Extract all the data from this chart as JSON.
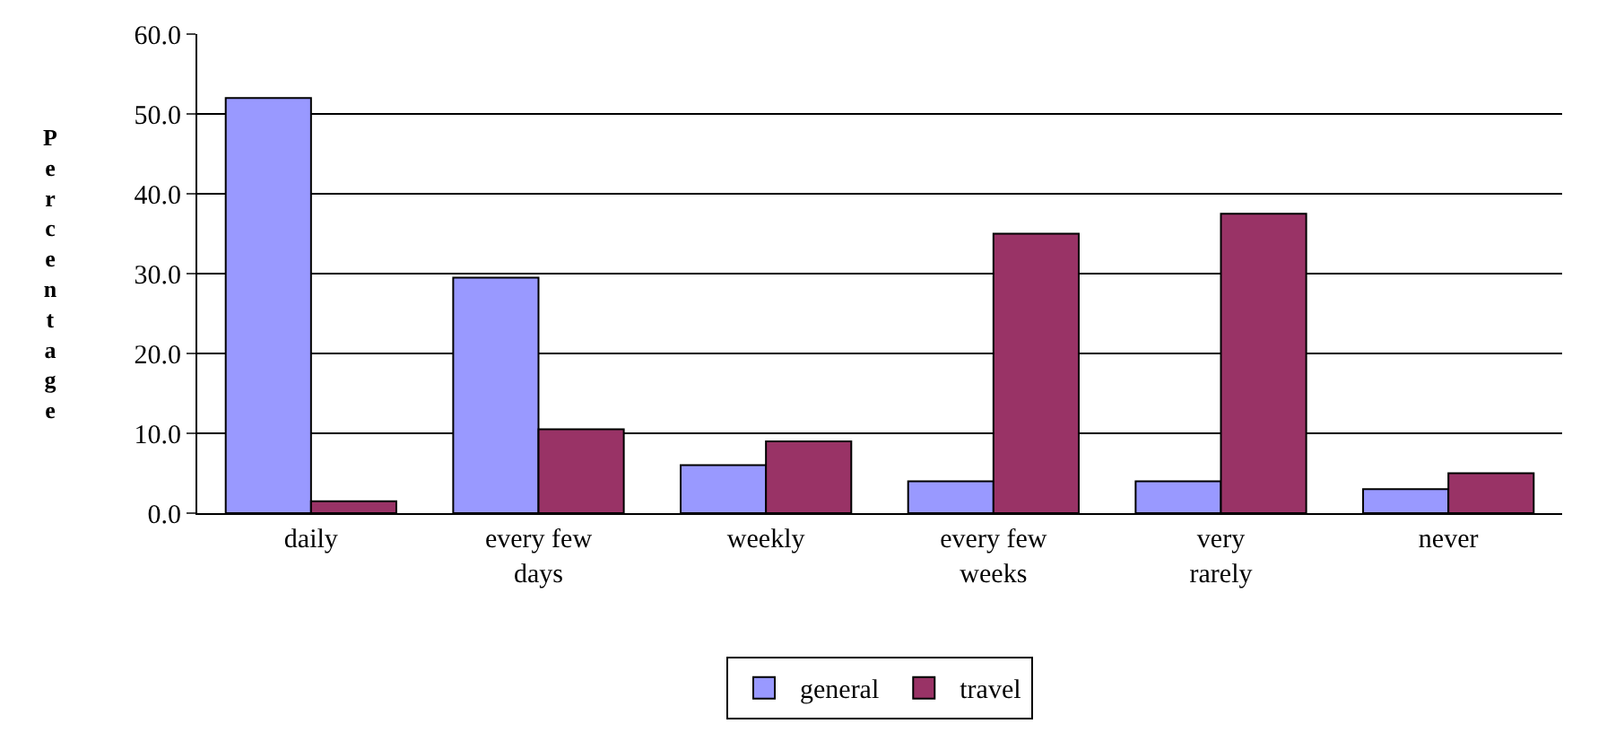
{
  "chart_data": {
    "type": "bar",
    "ylabel": "Percentage",
    "categories": [
      "daily",
      "every few days",
      "weekly",
      "every few weeks",
      "very rarely",
      "never"
    ],
    "series": [
      {
        "name": "general",
        "color": "#9999ff",
        "values": [
          52,
          29.5,
          6,
          4,
          4,
          3
        ]
      },
      {
        "name": "travel",
        "color": "#993366",
        "values": [
          1.5,
          10.5,
          9,
          35,
          37.5,
          5
        ]
      }
    ],
    "ylim": [
      0,
      60
    ],
    "yticks": [
      {
        "value": 0,
        "label": "0.0"
      },
      {
        "value": 10,
        "label": "10.0"
      },
      {
        "value": 20,
        "label": "20.0"
      },
      {
        "value": 30,
        "label": "30.0"
      },
      {
        "value": 40,
        "label": "40.0"
      },
      {
        "value": 50,
        "label": "50.0"
      },
      {
        "value": 60,
        "label": "60.0"
      }
    ],
    "grid": "y",
    "legend": "bottom"
  }
}
